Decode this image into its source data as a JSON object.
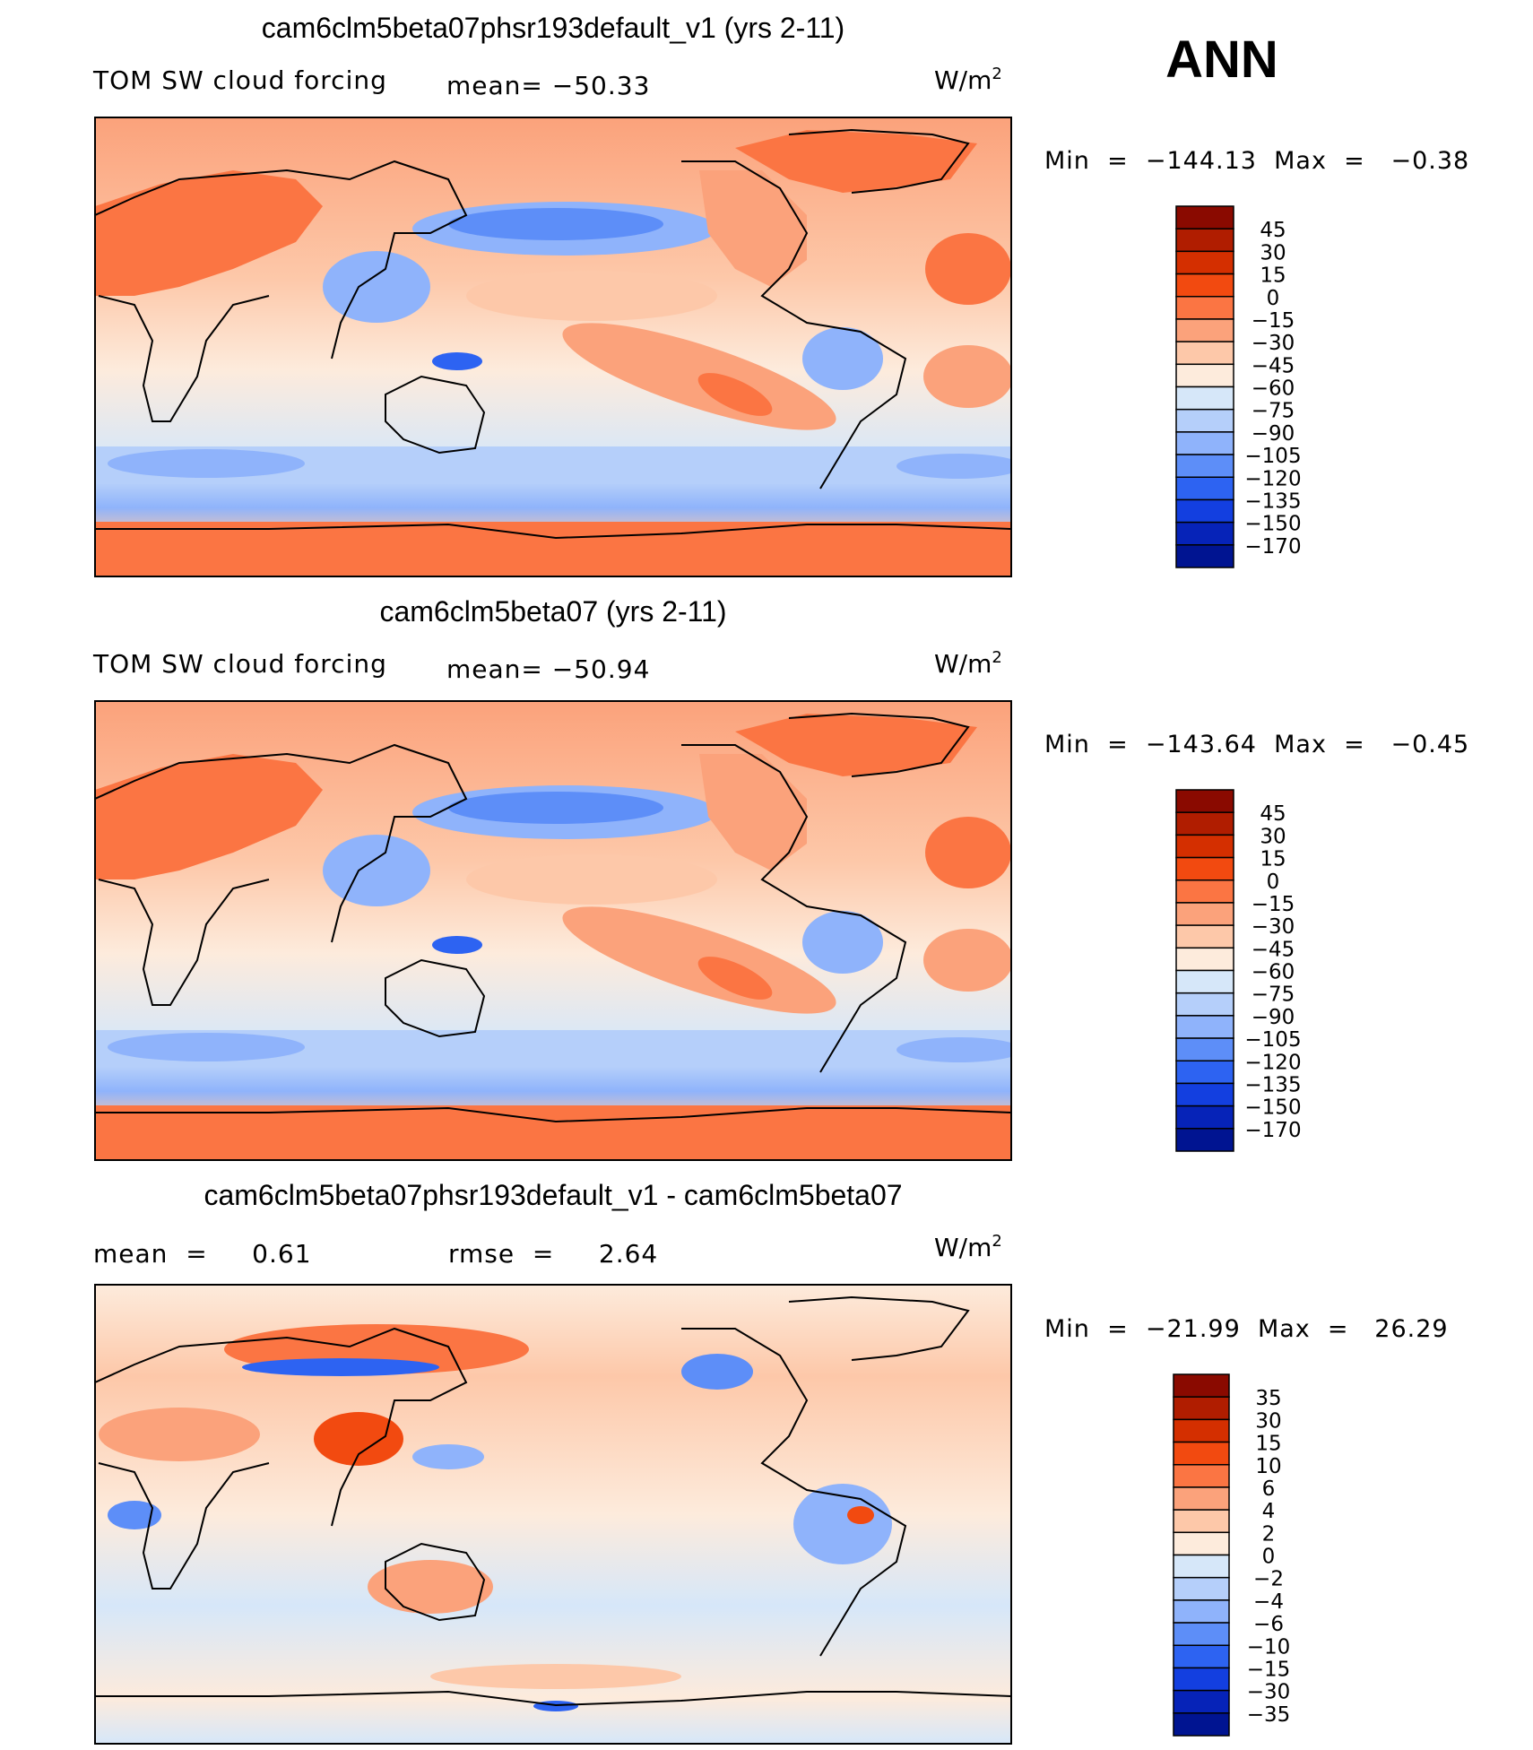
{
  "season": "ANN",
  "chart_data": [
    {
      "type": "heatmap",
      "title": "cam6clm5beta07phsr193default_v1 (yrs 2-11)",
      "variable": "TOM SW cloud forcing",
      "mean_text": "mean= −50.33",
      "units": "W/m",
      "units_exp": "2",
      "minmax_text": "Min  =  −144.13  Max  =   −0.38",
      "colorbar_labels": [
        "45",
        "30",
        "15",
        "0",
        "−15",
        "−30",
        "−45",
        "−60",
        "−75",
        "−90",
        "−105",
        "−120",
        "−135",
        "−150",
        "−170"
      ],
      "colorbar_colors": [
        "#8a0a00",
        "#b01d00",
        "#d42f00",
        "#f24a10",
        "#fb7543",
        "#fba27b",
        "#fdc8a9",
        "#fdebdc",
        "#d6e7f9",
        "#b5cffa",
        "#8fb3fb",
        "#5d8ef8",
        "#2d63f2",
        "#133fe0",
        "#0623b8",
        "#001491"
      ],
      "mean": -50.33,
      "min": -144.13,
      "max": -0.38
    },
    {
      "type": "heatmap",
      "title": "cam6clm5beta07 (yrs 2-11)",
      "variable": "TOM SW cloud forcing",
      "mean_text": "mean= −50.94",
      "units": "W/m",
      "units_exp": "2",
      "minmax_text": "Min  =  −143.64  Max  =   −0.45",
      "colorbar_labels": [
        "45",
        "30",
        "15",
        "0",
        "−15",
        "−30",
        "−45",
        "−60",
        "−75",
        "−90",
        "−105",
        "−120",
        "−135",
        "−150",
        "−170"
      ],
      "colorbar_colors": [
        "#8a0a00",
        "#b01d00",
        "#d42f00",
        "#f24a10",
        "#fb7543",
        "#fba27b",
        "#fdc8a9",
        "#fdebdc",
        "#d6e7f9",
        "#b5cffa",
        "#8fb3fb",
        "#5d8ef8",
        "#2d63f2",
        "#133fe0",
        "#0623b8",
        "#001491"
      ],
      "mean": -50.94,
      "min": -143.64,
      "max": -0.45
    },
    {
      "type": "heatmap",
      "title": "cam6clm5beta07phsr193default_v1 - cam6clm5beta07",
      "variable": "",
      "mean_text": "mean  =     0.61",
      "rmse_text": "rmse  =     2.64",
      "units": "W/m",
      "units_exp": "2",
      "minmax_text": "Min  =  −21.99  Max  =   26.29",
      "colorbar_labels": [
        "35",
        "30",
        "15",
        "10",
        "6",
        "4",
        "2",
        "0",
        "−2",
        "−4",
        "−6",
        "−10",
        "−15",
        "−30",
        "−35"
      ],
      "colorbar_colors": [
        "#8a0a00",
        "#b01d00",
        "#d42f00",
        "#f24a10",
        "#fb7543",
        "#fba27b",
        "#fdc8a9",
        "#fdebdc",
        "#d6e7f9",
        "#b5cffa",
        "#8fb3fb",
        "#5d8ef8",
        "#2d63f2",
        "#133fe0",
        "#0623b8",
        "#001491"
      ],
      "mean": 0.61,
      "rmse": 2.64,
      "min": -21.99,
      "max": 26.29
    }
  ]
}
